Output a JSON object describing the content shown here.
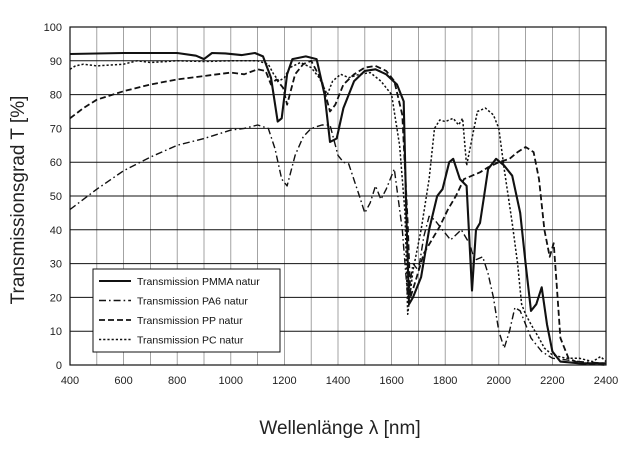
{
  "chart_data": {
    "type": "line",
    "xlabel": "Wellenlänge λ [nm]",
    "ylabel": "Transmissionsgrad T [%]",
    "xlim": [
      400,
      2400
    ],
    "ylim": [
      0,
      100
    ],
    "x_ticks": [
      400,
      600,
      800,
      1000,
      1200,
      1400,
      1600,
      1800,
      2000,
      2200,
      2400
    ],
    "y_ticks": [
      0,
      10,
      20,
      30,
      40,
      50,
      60,
      70,
      80,
      90,
      100
    ],
    "x_grid_step": 100,
    "grid": true,
    "legend_position": "bottom-left",
    "series": [
      {
        "name": "Transmission PMMA natur",
        "style": "solid",
        "points": [
          [
            400,
            92
          ],
          [
            600,
            92.3
          ],
          [
            800,
            92.3
          ],
          [
            870,
            91.5
          ],
          [
            900,
            90.5
          ],
          [
            930,
            92.3
          ],
          [
            980,
            92.2
          ],
          [
            1040,
            91.7
          ],
          [
            1090,
            92.3
          ],
          [
            1120,
            91.3
          ],
          [
            1150,
            85
          ],
          [
            1175,
            72
          ],
          [
            1190,
            73
          ],
          [
            1210,
            86
          ],
          [
            1230,
            90.5
          ],
          [
            1280,
            91.3
          ],
          [
            1320,
            90.5
          ],
          [
            1350,
            80
          ],
          [
            1370,
            66
          ],
          [
            1395,
            67
          ],
          [
            1420,
            76
          ],
          [
            1460,
            84
          ],
          [
            1500,
            87
          ],
          [
            1540,
            87.5
          ],
          [
            1580,
            86
          ],
          [
            1620,
            83
          ],
          [
            1645,
            78
          ],
          [
            1655,
            45
          ],
          [
            1665,
            18
          ],
          [
            1680,
            20
          ],
          [
            1710,
            26
          ],
          [
            1740,
            40
          ],
          [
            1770,
            50
          ],
          [
            1790,
            52
          ],
          [
            1815,
            60
          ],
          [
            1830,
            61
          ],
          [
            1855,
            55
          ],
          [
            1880,
            53
          ],
          [
            1900,
            22
          ],
          [
            1915,
            40
          ],
          [
            1930,
            42
          ],
          [
            1945,
            50
          ],
          [
            1960,
            58
          ],
          [
            1990,
            61
          ],
          [
            2020,
            59
          ],
          [
            2050,
            56
          ],
          [
            2080,
            45
          ],
          [
            2100,
            30
          ],
          [
            2120,
            16
          ],
          [
            2140,
            18
          ],
          [
            2160,
            23
          ],
          [
            2180,
            12
          ],
          [
            2200,
            4
          ],
          [
            2230,
            1
          ],
          [
            2300,
            0.5
          ],
          [
            2400,
            0.5
          ]
        ]
      },
      {
        "name": "Transmission PA6 natur",
        "style": "dash-dot",
        "points": [
          [
            400,
            46
          ],
          [
            500,
            52
          ],
          [
            600,
            57.5
          ],
          [
            700,
            61.5
          ],
          [
            800,
            65
          ],
          [
            900,
            67
          ],
          [
            960,
            68.5
          ],
          [
            1000,
            69.5
          ],
          [
            1050,
            70
          ],
          [
            1100,
            71
          ],
          [
            1140,
            70
          ],
          [
            1165,
            64
          ],
          [
            1190,
            55
          ],
          [
            1210,
            53
          ],
          [
            1240,
            62
          ],
          [
            1270,
            67.5
          ],
          [
            1300,
            70
          ],
          [
            1340,
            71
          ],
          [
            1370,
            71
          ],
          [
            1400,
            62
          ],
          [
            1420,
            60
          ],
          [
            1440,
            59.5
          ],
          [
            1480,
            50
          ],
          [
            1500,
            45
          ],
          [
            1520,
            48
          ],
          [
            1540,
            53
          ],
          [
            1560,
            49
          ],
          [
            1580,
            52
          ],
          [
            1610,
            58
          ],
          [
            1640,
            40
          ],
          [
            1660,
            20
          ],
          [
            1680,
            30
          ],
          [
            1700,
            28
          ],
          [
            1720,
            38
          ],
          [
            1740,
            44
          ],
          [
            1760,
            43
          ],
          [
            1790,
            40
          ],
          [
            1820,
            37
          ],
          [
            1860,
            40
          ],
          [
            1890,
            36
          ],
          [
            1910,
            31
          ],
          [
            1940,
            32
          ],
          [
            1960,
            27
          ],
          [
            1980,
            20
          ],
          [
            2000,
            10
          ],
          [
            2020,
            5
          ],
          [
            2040,
            10
          ],
          [
            2060,
            17
          ],
          [
            2080,
            16
          ],
          [
            2100,
            12
          ],
          [
            2120,
            8
          ],
          [
            2140,
            6
          ],
          [
            2160,
            4
          ],
          [
            2200,
            2
          ],
          [
            2300,
            1
          ],
          [
            2400,
            0.5
          ]
        ]
      },
      {
        "name": "Transmission PP natur",
        "style": "dashed",
        "points": [
          [
            400,
            73
          ],
          [
            450,
            76
          ],
          [
            500,
            78.5
          ],
          [
            600,
            81
          ],
          [
            700,
            83
          ],
          [
            800,
            84.5
          ],
          [
            900,
            85.5
          ],
          [
            1000,
            86.5
          ],
          [
            1050,
            86
          ],
          [
            1100,
            87.5
          ],
          [
            1130,
            87
          ],
          [
            1150,
            83
          ],
          [
            1170,
            84.5
          ],
          [
            1195,
            82
          ],
          [
            1210,
            77
          ],
          [
            1240,
            86
          ],
          [
            1270,
            89
          ],
          [
            1300,
            90
          ],
          [
            1340,
            84
          ],
          [
            1370,
            75
          ],
          [
            1390,
            77
          ],
          [
            1420,
            83
          ],
          [
            1460,
            86
          ],
          [
            1500,
            88
          ],
          [
            1540,
            88.5
          ],
          [
            1580,
            87
          ],
          [
            1610,
            84
          ],
          [
            1640,
            74
          ],
          [
            1660,
            42
          ],
          [
            1670,
            20
          ],
          [
            1690,
            25
          ],
          [
            1720,
            33
          ],
          [
            1750,
            37
          ],
          [
            1780,
            41
          ],
          [
            1810,
            46
          ],
          [
            1840,
            50
          ],
          [
            1870,
            55
          ],
          [
            1900,
            56
          ],
          [
            1930,
            57
          ],
          [
            1960,
            58.5
          ],
          [
            2000,
            60
          ],
          [
            2040,
            61
          ],
          [
            2070,
            63
          ],
          [
            2100,
            64.5
          ],
          [
            2130,
            63
          ],
          [
            2150,
            55
          ],
          [
            2170,
            40
          ],
          [
            2190,
            32
          ],
          [
            2205,
            36
          ],
          [
            2215,
            25
          ],
          [
            2230,
            8
          ],
          [
            2260,
            2
          ],
          [
            2300,
            0.5
          ],
          [
            2400,
            0
          ]
        ]
      },
      {
        "name": "Transmission PC natur",
        "style": "dotted",
        "points": [
          [
            400,
            87.5
          ],
          [
            420,
            88.5
          ],
          [
            450,
            89
          ],
          [
            500,
            88.5
          ],
          [
            600,
            89
          ],
          [
            650,
            90
          ],
          [
            700,
            89.5
          ],
          [
            800,
            90
          ],
          [
            900,
            89.8
          ],
          [
            1000,
            90
          ],
          [
            1100,
            90
          ],
          [
            1140,
            89
          ],
          [
            1160,
            86
          ],
          [
            1180,
            84
          ],
          [
            1200,
            85
          ],
          [
            1220,
            88
          ],
          [
            1260,
            89.5
          ],
          [
            1300,
            88
          ],
          [
            1330,
            85
          ],
          [
            1360,
            80
          ],
          [
            1380,
            84
          ],
          [
            1410,
            86
          ],
          [
            1440,
            85
          ],
          [
            1480,
            86
          ],
          [
            1520,
            86.5
          ],
          [
            1560,
            84
          ],
          [
            1600,
            80
          ],
          [
            1630,
            65
          ],
          [
            1650,
            45
          ],
          [
            1660,
            15
          ],
          [
            1680,
            28
          ],
          [
            1710,
            40
          ],
          [
            1740,
            55
          ],
          [
            1760,
            70
          ],
          [
            1780,
            72.5
          ],
          [
            1800,
            72
          ],
          [
            1830,
            73
          ],
          [
            1850,
            71
          ],
          [
            1865,
            73
          ],
          [
            1880,
            59
          ],
          [
            1900,
            67
          ],
          [
            1920,
            75
          ],
          [
            1950,
            76
          ],
          [
            1980,
            74
          ],
          [
            2000,
            70
          ],
          [
            2020,
            58
          ],
          [
            2050,
            42
          ],
          [
            2070,
            30
          ],
          [
            2085,
            18
          ],
          [
            2100,
            15
          ],
          [
            2120,
            12
          ],
          [
            2150,
            8
          ],
          [
            2170,
            5
          ],
          [
            2200,
            3
          ],
          [
            2250,
            2
          ],
          [
            2300,
            2
          ],
          [
            2350,
            1
          ],
          [
            2380,
            2.5
          ],
          [
            2400,
            1
          ]
        ]
      }
    ]
  }
}
